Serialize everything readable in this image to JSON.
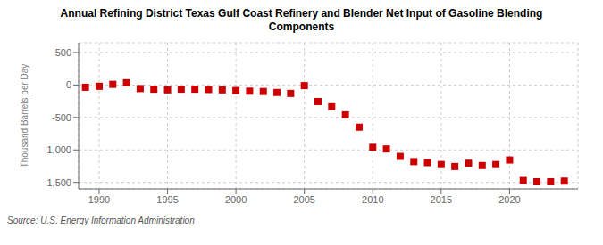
{
  "chart_data": {
    "type": "scatter",
    "title": "Annual Refining District Texas Gulf Coast Refinery and Blender Net Input of Gasoline Blending\nComponents",
    "ylabel": "Thousand Barrels per Day",
    "source": "Source: U.S. Energy Information Administration",
    "color": "#cc0000",
    "marker": "square",
    "grid": true,
    "xlim": [
      1988.5,
      2025
    ],
    "ylim": [
      -1600,
      650
    ],
    "xticks": [
      1990,
      1995,
      2000,
      2005,
      2010,
      2015,
      2020
    ],
    "yticks": [
      {
        "value": -1500,
        "label": "-1,500"
      },
      {
        "value": -1000,
        "label": "-1,000"
      },
      -500,
      0,
      500
    ],
    "x": [
      1989,
      1990,
      1991,
      1992,
      1993,
      1994,
      1995,
      1996,
      1997,
      1998,
      1999,
      2000,
      2001,
      2002,
      2003,
      2004,
      2005,
      2006,
      2007,
      2008,
      2009,
      2010,
      2011,
      2012,
      2013,
      2014,
      2015,
      2016,
      2017,
      2018,
      2019,
      2020,
      2021,
      2022,
      2023,
      2024
    ],
    "values": [
      -35,
      -20,
      10,
      35,
      -55,
      -65,
      -75,
      -65,
      -65,
      -70,
      -75,
      -85,
      -95,
      -100,
      -115,
      -130,
      -10,
      -255,
      -335,
      -460,
      -650,
      -960,
      -985,
      -1100,
      -1180,
      -1195,
      -1225,
      -1255,
      -1205,
      -1240,
      -1225,
      -1155,
      -1470,
      -1490,
      -1490,
      -1480
    ]
  }
}
